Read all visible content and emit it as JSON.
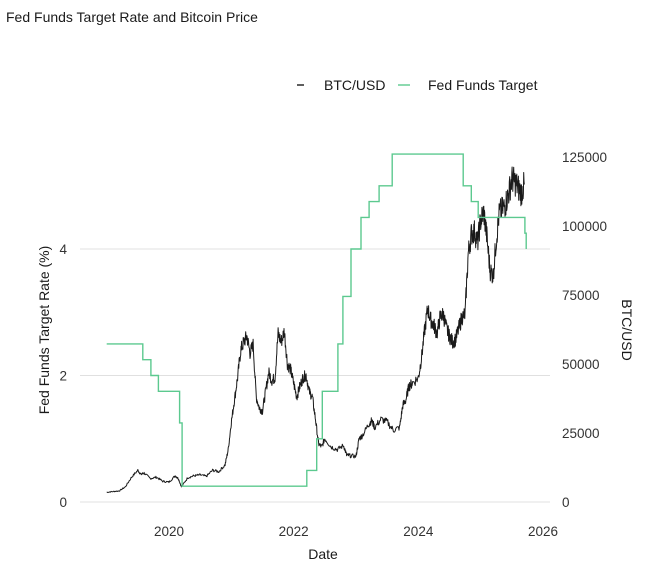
{
  "chart_data": {
    "type": "line",
    "title": "Fed Funds Target Rate and Bitcoin Price",
    "xlabel": "Date",
    "ylabel_left": "Fed Funds Target Rate (%)",
    "ylabel_right": "BTC/USD",
    "xlim": [
      2018.9,
      2026.0
    ],
    "ylim_left": [
      0,
      6.25
    ],
    "ylim_right": [
      0,
      125000
    ],
    "x_ticks": [
      2020,
      2022,
      2024,
      2026
    ],
    "x_tick_labels": [
      "2020",
      "2022",
      "2024",
      "2026"
    ],
    "y_left_ticks": [
      0,
      2,
      4
    ],
    "y_left_tick_labels": [
      "0",
      "2",
      "4"
    ],
    "y_right_ticks": [
      0,
      25000,
      50000,
      75000,
      100000,
      125000
    ],
    "y_right_tick_labels": [
      "0",
      "25000",
      "50000",
      "75000",
      "100000",
      "125000"
    ],
    "grid": true,
    "legend_position": "top-right",
    "colors": {
      "btc": "#1a1a1a",
      "fed": "#5cc98f",
      "grid": "#e0e0e0"
    },
    "series": [
      {
        "name": "BTC/USD",
        "axis": "right",
        "x": [
          2019.0,
          2019.1,
          2019.2,
          2019.3,
          2019.4,
          2019.5,
          2019.55,
          2019.6,
          2019.7,
          2019.8,
          2019.9,
          2020.0,
          2020.1,
          2020.15,
          2020.2,
          2020.3,
          2020.4,
          2020.5,
          2020.6,
          2020.7,
          2020.8,
          2020.9,
          2020.95,
          2021.0,
          2021.05,
          2021.1,
          2021.15,
          2021.2,
          2021.25,
          2021.3,
          2021.35,
          2021.4,
          2021.45,
          2021.5,
          2021.55,
          2021.6,
          2021.65,
          2021.7,
          2021.75,
          2021.8,
          2021.85,
          2021.9,
          2021.95,
          2022.0,
          2022.05,
          2022.1,
          2022.15,
          2022.2,
          2022.25,
          2022.3,
          2022.35,
          2022.4,
          2022.45,
          2022.5,
          2022.6,
          2022.7,
          2022.8,
          2022.85,
          2022.9,
          2023.0,
          2023.05,
          2023.1,
          2023.2,
          2023.25,
          2023.3,
          2023.4,
          2023.5,
          2023.6,
          2023.7,
          2023.75,
          2023.8,
          2023.85,
          2023.9,
          2024.0,
          2024.05,
          2024.1,
          2024.15,
          2024.2,
          2024.25,
          2024.3,
          2024.35,
          2024.4,
          2024.45,
          2024.5,
          2024.55,
          2024.6,
          2024.65,
          2024.7,
          2024.75,
          2024.8,
          2024.85,
          2024.9,
          2024.95,
          2025.0,
          2025.05,
          2025.1,
          2025.15,
          2025.2,
          2025.25,
          2025.3,
          2025.35,
          2025.4,
          2025.45,
          2025.5,
          2025.55,
          2025.6,
          2025.65,
          2025.7
        ],
        "values": [
          3500,
          3800,
          4000,
          5500,
          9000,
          11500,
          10000,
          10500,
          8500,
          9000,
          7500,
          7200,
          9500,
          8500,
          5500,
          8800,
          9500,
          9800,
          9300,
          11500,
          11000,
          13500,
          19000,
          29000,
          37000,
          45000,
          55000,
          58000,
          60000,
          54000,
          57000,
          38000,
          34000,
          33000,
          40000,
          47000,
          44000,
          45000,
          61000,
          58000,
          62000,
          50000,
          48000,
          43000,
          38000,
          42000,
          45000,
          46000,
          40000,
          38000,
          30000,
          21000,
          20000,
          23000,
          20000,
          19000,
          20500,
          17000,
          16800,
          16500,
          23000,
          24000,
          28000,
          29500,
          27000,
          30000,
          29000,
          26000,
          27000,
          35000,
          37000,
          42000,
          43000,
          45000,
          52000,
          62000,
          70000,
          66000,
          64000,
          61000,
          67000,
          68000,
          63000,
          60000,
          58000,
          59000,
          63000,
          67000,
          68000,
          90000,
          97000,
          98000,
          94000,
          102000,
          105000,
          96000,
          84000,
          82000,
          95000,
          105000,
          106000,
          108000,
          112000,
          117000,
          116000,
          114000,
          112000,
          115000
        ]
      },
      {
        "name": "Fed Funds Target",
        "axis": "left",
        "step": "post",
        "x": [
          2019.0,
          2019.58,
          2019.71,
          2019.83,
          2020.17,
          2020.21,
          2022.21,
          2022.37,
          2022.46,
          2022.71,
          2022.79,
          2022.92,
          2023.08,
          2023.21,
          2023.37,
          2023.58,
          2024.72,
          2024.85,
          2024.96,
          2025.71,
          2025.73
        ],
        "values": [
          2.5,
          2.25,
          2.0,
          1.75,
          1.25,
          0.25,
          0.5,
          1.0,
          1.75,
          2.5,
          3.25,
          4.0,
          4.5,
          4.75,
          5.0,
          5.5,
          5.0,
          4.75,
          4.5,
          4.25,
          4.0
        ]
      }
    ]
  }
}
